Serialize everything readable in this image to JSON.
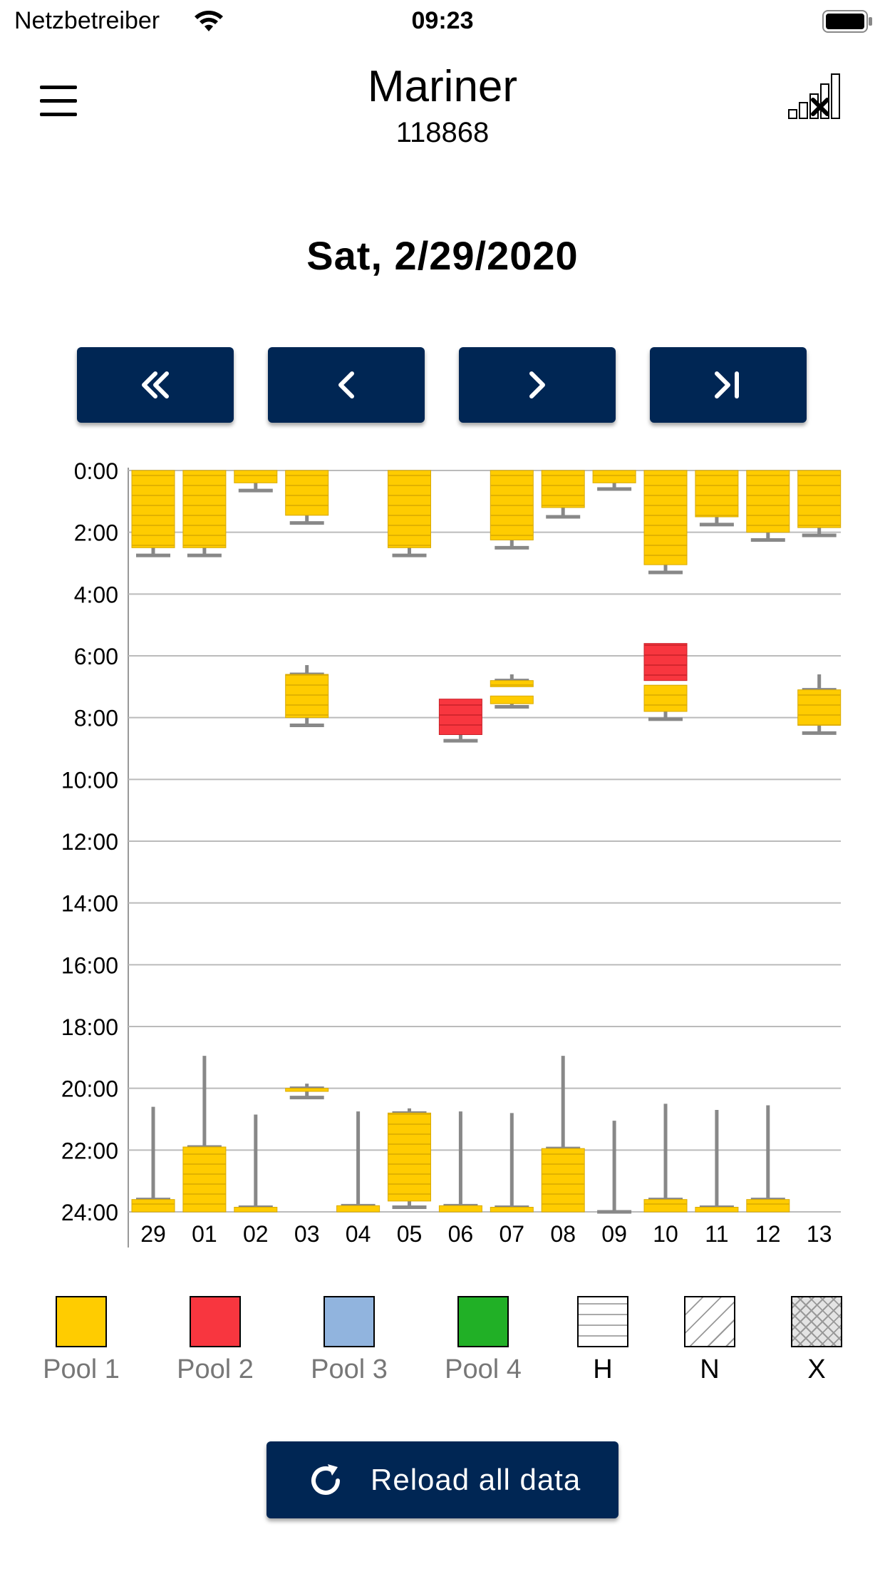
{
  "status_bar": {
    "carrier": "Netzbetreiber",
    "time": "09:23"
  },
  "header": {
    "title": "Mariner",
    "subtitle": "118868",
    "menu_icon": "hamburger-menu-icon",
    "signal_icon": "no-signal-icon"
  },
  "date_label": "Sat, 2/29/2020",
  "nav_buttons": [
    {
      "icon": "double-chevron-left-icon"
    },
    {
      "icon": "chevron-left-icon"
    },
    {
      "icon": "chevron-right-icon"
    },
    {
      "icon": "skip-to-end-icon"
    }
  ],
  "colors": {
    "nav_bg": "#002654",
    "pool1": "#FFCC00",
    "pool2": "#F8363F",
    "pool3": "#91B4DE",
    "pool4": "#21B026",
    "whisker": "#888888",
    "grid": "#BBBBBB"
  },
  "chart_data": {
    "type": "bar",
    "orientation": "vertical-time",
    "y_ticks": [
      "0:00",
      "2:00",
      "4:00",
      "6:00",
      "8:00",
      "10:00",
      "12:00",
      "14:00",
      "16:00",
      "18:00",
      "20:00",
      "22:00",
      "24:00"
    ],
    "ylim_hours": [
      0,
      24
    ],
    "grid": true,
    "categories": [
      "29",
      "01",
      "02",
      "03",
      "04",
      "05",
      "06",
      "07",
      "08",
      "09",
      "10",
      "11",
      "12",
      "13"
    ],
    "bars": [
      {
        "day": 0,
        "start": 0,
        "end": 2.5,
        "pool": 1
      },
      {
        "day": 1,
        "start": 0,
        "end": 2.5,
        "pool": 1
      },
      {
        "day": 2,
        "start": 0,
        "end": 0.4,
        "pool": 1
      },
      {
        "day": 3,
        "start": 0,
        "end": 1.45,
        "pool": 1
      },
      {
        "day": 5,
        "start": 0,
        "end": 2.5,
        "pool": 1
      },
      {
        "day": 7,
        "start": 0,
        "end": 2.25,
        "pool": 1
      },
      {
        "day": 8,
        "start": 0,
        "end": 1.2,
        "pool": 1
      },
      {
        "day": 9,
        "start": 0,
        "end": 0.4,
        "pool": 1
      },
      {
        "day": 10,
        "start": 0,
        "end": 3.05,
        "pool": 1
      },
      {
        "day": 11,
        "start": 0,
        "end": 1.5,
        "pool": 1
      },
      {
        "day": 12,
        "start": 0,
        "end": 2.0,
        "pool": 1
      },
      {
        "day": 13,
        "start": 0,
        "end": 1.85,
        "pool": 1
      },
      {
        "day": 3,
        "start": 6.6,
        "end": 8.0,
        "pool": 1
      },
      {
        "day": 6,
        "start": 7.4,
        "end": 8.55,
        "pool": 2
      },
      {
        "day": 7,
        "start": 6.8,
        "end": 7.0,
        "pool": 1
      },
      {
        "day": 7,
        "start": 7.3,
        "end": 7.55,
        "pool": 1
      },
      {
        "day": 10,
        "start": 5.6,
        "end": 6.8,
        "pool": 2
      },
      {
        "day": 10,
        "start": 6.95,
        "end": 7.8,
        "pool": 1
      },
      {
        "day": 13,
        "start": 7.1,
        "end": 8.25,
        "pool": 1
      },
      {
        "day": 0,
        "start": 23.6,
        "end": 24,
        "pool": 1
      },
      {
        "day": 1,
        "start": 21.9,
        "end": 24,
        "pool": 1
      },
      {
        "day": 2,
        "start": 23.85,
        "end": 24,
        "pool": 1
      },
      {
        "day": 3,
        "start": 20.0,
        "end": 20.1,
        "pool": 1
      },
      {
        "day": 4,
        "start": 23.8,
        "end": 24,
        "pool": 1
      },
      {
        "day": 5,
        "start": 20.8,
        "end": 23.65,
        "pool": 1
      },
      {
        "day": 6,
        "start": 23.8,
        "end": 24,
        "pool": 1
      },
      {
        "day": 7,
        "start": 23.85,
        "end": 24,
        "pool": 1
      },
      {
        "day": 8,
        "start": 21.95,
        "end": 24,
        "pool": 1
      },
      {
        "day": 10,
        "start": 23.6,
        "end": 24,
        "pool": 1
      },
      {
        "day": 11,
        "start": 23.85,
        "end": 24,
        "pool": 1
      },
      {
        "day": 12,
        "start": 23.6,
        "end": 24,
        "pool": 1
      }
    ],
    "whiskers": [
      {
        "day": 0,
        "from": 2.5,
        "to": 2.75
      },
      {
        "day": 1,
        "from": 2.5,
        "to": 2.75
      },
      {
        "day": 2,
        "from": 0.4,
        "to": 0.65
      },
      {
        "day": 3,
        "from": 1.45,
        "to": 1.7
      },
      {
        "day": 5,
        "from": 2.5,
        "to": 2.75
      },
      {
        "day": 7,
        "from": 2.25,
        "to": 2.5
      },
      {
        "day": 8,
        "from": 1.2,
        "to": 1.5
      },
      {
        "day": 9,
        "from": 0.4,
        "to": 0.6
      },
      {
        "day": 10,
        "from": 3.05,
        "to": 3.3
      },
      {
        "day": 11,
        "from": 1.5,
        "to": 1.75
      },
      {
        "day": 12,
        "from": 2.0,
        "to": 2.25
      },
      {
        "day": 13,
        "from": 1.85,
        "to": 2.1
      },
      {
        "day": 3,
        "from": 6.3,
        "to": 6.6
      },
      {
        "day": 3,
        "from": 8.0,
        "to": 8.25
      },
      {
        "day": 6,
        "from": 8.55,
        "to": 8.75
      },
      {
        "day": 7,
        "from": 6.6,
        "to": 6.8
      },
      {
        "day": 7,
        "from": 7.55,
        "to": 7.65
      },
      {
        "day": 10,
        "from": 7.8,
        "to": 8.05
      },
      {
        "day": 13,
        "from": 6.6,
        "to": 7.1
      },
      {
        "day": 13,
        "from": 8.25,
        "to": 8.5
      },
      {
        "day": 0,
        "from": 20.6,
        "to": 23.6
      },
      {
        "day": 1,
        "from": 18.95,
        "to": 21.9
      },
      {
        "day": 2,
        "from": 20.85,
        "to": 23.85
      },
      {
        "day": 3,
        "from": 19.85,
        "to": 20.0
      },
      {
        "day": 3,
        "from": 20.1,
        "to": 20.3
      },
      {
        "day": 4,
        "from": 20.75,
        "to": 23.8
      },
      {
        "day": 5,
        "from": 20.65,
        "to": 20.8
      },
      {
        "day": 5,
        "from": 23.65,
        "to": 23.85
      },
      {
        "day": 6,
        "from": 20.75,
        "to": 23.8
      },
      {
        "day": 7,
        "from": 20.8,
        "to": 23.85
      },
      {
        "day": 8,
        "from": 18.95,
        "to": 21.95
      },
      {
        "day": 9,
        "from": 21.05,
        "to": 24
      },
      {
        "day": 10,
        "from": 20.5,
        "to": 23.6
      },
      {
        "day": 11,
        "from": 20.7,
        "to": 23.85
      },
      {
        "day": 12,
        "from": 20.55,
        "to": 23.6
      }
    ]
  },
  "legend": [
    {
      "label": "Pool 1",
      "pattern": "solid",
      "color": "#FFCC00",
      "dark": false
    },
    {
      "label": "Pool 2",
      "pattern": "solid",
      "color": "#F8363F",
      "dark": false
    },
    {
      "label": "Pool 3",
      "pattern": "solid",
      "color": "#91B4DE",
      "dark": false
    },
    {
      "label": "Pool 4",
      "pattern": "solid",
      "color": "#21B026",
      "dark": false
    },
    {
      "label": "H",
      "pattern": "horizontal-lines",
      "color": "#FFFFFF",
      "dark": true
    },
    {
      "label": "N",
      "pattern": "diagonal-lines",
      "color": "#FFFFFF",
      "dark": true
    },
    {
      "label": "X",
      "pattern": "crosshatch",
      "color": "#DDDDDD",
      "dark": true
    }
  ],
  "reload": {
    "label": "Reload all data",
    "icon": "reload-icon"
  }
}
